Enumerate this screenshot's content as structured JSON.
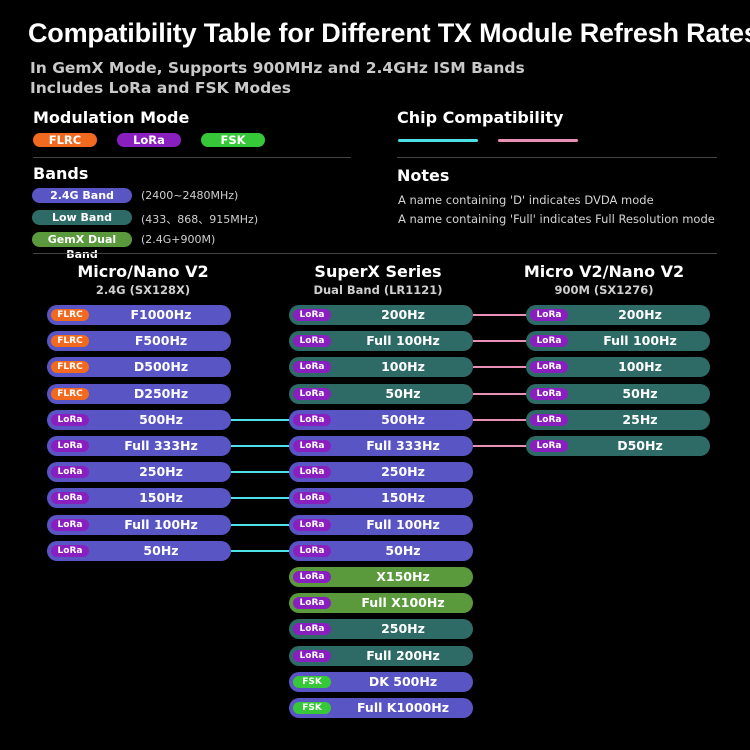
{
  "title": "Compatibility Table for Different TX Module Refresh Rates",
  "subtitle_lines": [
    "In GemX Mode, Supports 900MHz and 2.4GHz ISM Bands",
    "Includes LoRa and FSK Modes"
  ],
  "colors": {
    "flrc": "#f26a1f",
    "lora": "#8a1fc0",
    "fsk": "#37c83a",
    "band_24g": "#5a55c4",
    "band_low": "#2f6b66",
    "band_gemx": "#5a9a3c",
    "row_24g": "#5a55c4",
    "row_low": "#2f6b66",
    "row_gemx": "#5a9a3c",
    "line_blue": "#4de0e6",
    "line_pink": "#e890b6"
  },
  "modulation": {
    "heading": "Modulation Mode",
    "modes": [
      {
        "label": "FLRC",
        "color": "#f26a1f"
      },
      {
        "label": "LoRa",
        "color": "#8a1fc0"
      },
      {
        "label": "FSK",
        "color": "#37c83a"
      }
    ]
  },
  "chip_compat": {
    "heading": "Chip Compatibility",
    "line_colors": [
      "#4de0e6",
      "#e890b6"
    ]
  },
  "bands": {
    "heading": "Bands",
    "items": [
      {
        "label": "2.4G Band",
        "range": "(2400~2480MHz)",
        "color": "#5a55c4"
      },
      {
        "label": "Low Band",
        "range": "(433、868、915MHz)",
        "color": "#2f6b66"
      },
      {
        "label": "GemX Dual Band",
        "range": "(2.4G+900M)",
        "color": "#5a9a3c"
      }
    ]
  },
  "notes": {
    "heading": "Notes",
    "items": [
      "A name containing 'D' indicates DVDA mode",
      "A name containing 'Full' indicates Full Resolution mode"
    ]
  },
  "columns": [
    {
      "title": "Micro/Nano V2",
      "subtitle": "2.4G (SX128X)",
      "rows": [
        {
          "tag": "FLRC",
          "label": "F1000Hz",
          "band": "24g"
        },
        {
          "tag": "FLRC",
          "label": "F500Hz",
          "band": "24g"
        },
        {
          "tag": "FLRC",
          "label": "D500Hz",
          "band": "24g"
        },
        {
          "tag": "FLRC",
          "label": "D250Hz",
          "band": "24g"
        },
        {
          "tag": "LoRa",
          "label": "500Hz",
          "band": "24g"
        },
        {
          "tag": "LoRa",
          "label": "Full 333Hz",
          "band": "24g"
        },
        {
          "tag": "LoRa",
          "label": "250Hz",
          "band": "24g"
        },
        {
          "tag": "LoRa",
          "label": "150Hz",
          "band": "24g"
        },
        {
          "tag": "LoRa",
          "label": "Full 100Hz",
          "band": "24g"
        },
        {
          "tag": "LoRa",
          "label": "50Hz",
          "band": "24g"
        }
      ]
    },
    {
      "title": "SuperX Series",
      "subtitle": "Dual Band (LR1121)",
      "rows": [
        {
          "tag": "LoRa",
          "label": "200Hz",
          "band": "low"
        },
        {
          "tag": "LoRa",
          "label": "Full 100Hz",
          "band": "low"
        },
        {
          "tag": "LoRa",
          "label": "100Hz",
          "band": "low"
        },
        {
          "tag": "LoRa",
          "label": "50Hz",
          "band": "low"
        },
        {
          "tag": "LoRa",
          "label": "500Hz",
          "band": "24g"
        },
        {
          "tag": "LoRa",
          "label": "Full 333Hz",
          "band": "24g"
        },
        {
          "tag": "LoRa",
          "label": "250Hz",
          "band": "24g"
        },
        {
          "tag": "LoRa",
          "label": "150Hz",
          "band": "24g"
        },
        {
          "tag": "LoRa",
          "label": "Full 100Hz",
          "band": "24g"
        },
        {
          "tag": "LoRa",
          "label": "50Hz",
          "band": "24g"
        },
        {
          "tag": "LoRa",
          "label": "X150Hz",
          "band": "gemx"
        },
        {
          "tag": "LoRa",
          "label": "Full X100Hz",
          "band": "gemx"
        },
        {
          "tag": "LoRa",
          "label": "250Hz",
          "band": "low"
        },
        {
          "tag": "LoRa",
          "label": "Full 200Hz",
          "band": "low"
        },
        {
          "tag": "FSK",
          "label": "DK 500Hz",
          "band": "24g"
        },
        {
          "tag": "FSK",
          "label": "Full K1000Hz",
          "band": "24g"
        }
      ]
    },
    {
      "title": "Micro V2/Nano V2",
      "subtitle": "900M (SX1276)",
      "rows": [
        {
          "tag": "LoRa",
          "label": "200Hz",
          "band": "low"
        },
        {
          "tag": "LoRa",
          "label": "Full 100Hz",
          "band": "low"
        },
        {
          "tag": "LoRa",
          "label": "100Hz",
          "band": "low"
        },
        {
          "tag": "LoRa",
          "label": "50Hz",
          "band": "low"
        },
        {
          "tag": "LoRa",
          "label": "25Hz",
          "band": "low"
        },
        {
          "tag": "LoRa",
          "label": "D50Hz",
          "band": "low"
        }
      ]
    }
  ],
  "links": [
    {
      "from_col": 0,
      "from_row": 4,
      "to_col": 1,
      "to_row": 4,
      "color": "blue"
    },
    {
      "from_col": 0,
      "from_row": 5,
      "to_col": 1,
      "to_row": 5,
      "color": "blue"
    },
    {
      "from_col": 0,
      "from_row": 6,
      "to_col": 1,
      "to_row": 6,
      "color": "blue"
    },
    {
      "from_col": 0,
      "from_row": 7,
      "to_col": 1,
      "to_row": 7,
      "color": "blue"
    },
    {
      "from_col": 0,
      "from_row": 8,
      "to_col": 1,
      "to_row": 8,
      "color": "blue"
    },
    {
      "from_col": 0,
      "from_row": 9,
      "to_col": 1,
      "to_row": 9,
      "color": "blue"
    },
    {
      "from_col": 1,
      "from_row": 0,
      "to_col": 2,
      "to_row": 0,
      "color": "pink"
    },
    {
      "from_col": 1,
      "from_row": 1,
      "to_col": 2,
      "to_row": 1,
      "color": "pink"
    },
    {
      "from_col": 1,
      "from_row": 2,
      "to_col": 2,
      "to_row": 2,
      "color": "pink"
    },
    {
      "from_col": 1,
      "from_row": 3,
      "to_col": 2,
      "to_row": 3,
      "color": "pink"
    },
    {
      "from_col": 1,
      "from_row": 4,
      "to_col": 2,
      "to_row": 4,
      "color": "pink"
    },
    {
      "from_col": 1,
      "from_row": 5,
      "to_col": 2,
      "to_row": 5,
      "color": "pink"
    }
  ]
}
